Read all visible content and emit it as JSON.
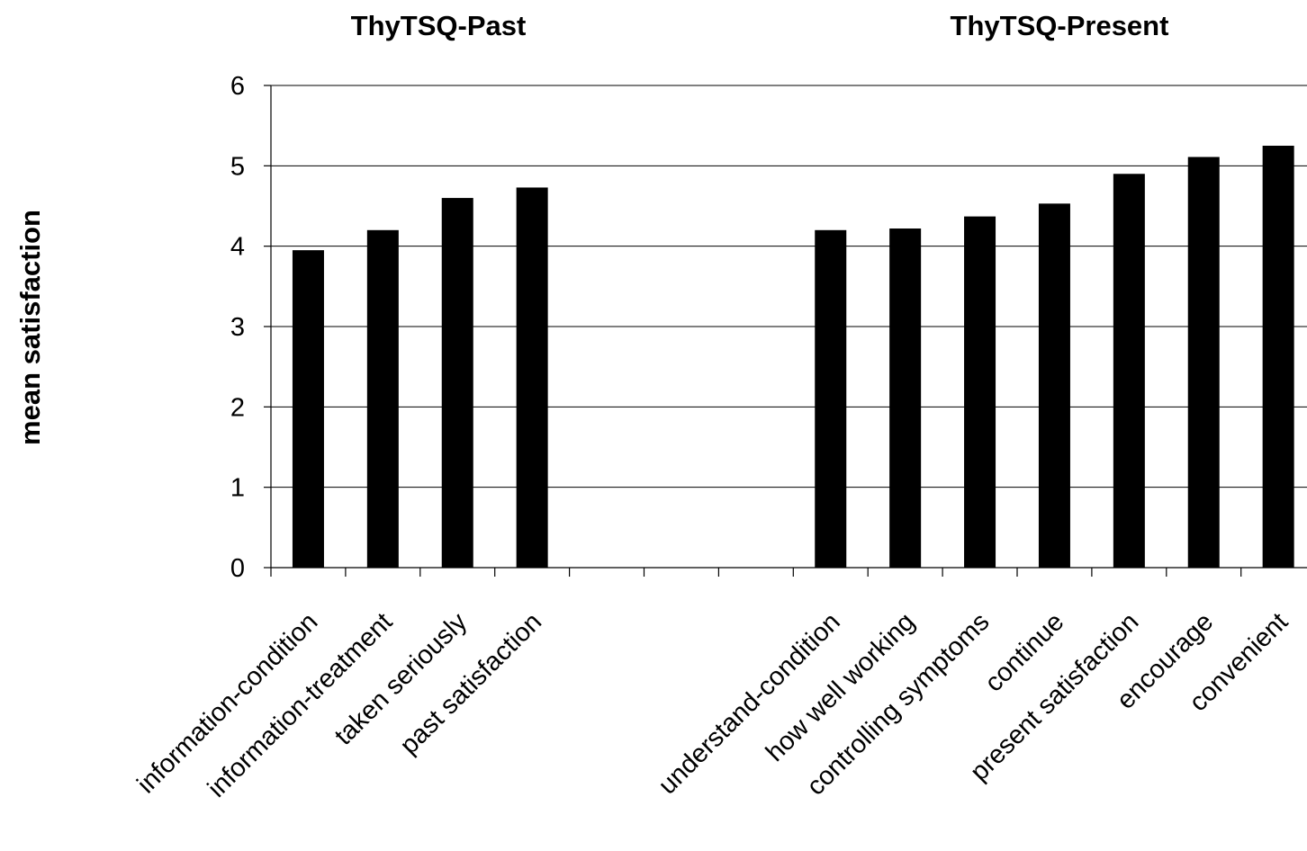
{
  "chart_data": {
    "type": "bar",
    "panel_titles": [
      "ThyTSQ-Past",
      "ThyTSQ-Present"
    ],
    "ylabel": "mean satisfaction",
    "ylim": [
      0,
      6
    ],
    "yticks": [
      0,
      1,
      2,
      3,
      4,
      5,
      6
    ],
    "grid": true,
    "bar_color": "#000000",
    "categories": [
      "information-condition",
      "information-treatment",
      "taken seriously",
      "past satisfaction",
      "",
      "",
      "",
      "understand-condition",
      "how well working",
      "controlling symptoms",
      "continue",
      "present satisfaction",
      "encourage",
      "convenient"
    ],
    "values": [
      3.95,
      4.2,
      4.6,
      4.73,
      null,
      null,
      null,
      4.2,
      4.22,
      4.37,
      4.53,
      4.9,
      5.11,
      5.25
    ]
  }
}
